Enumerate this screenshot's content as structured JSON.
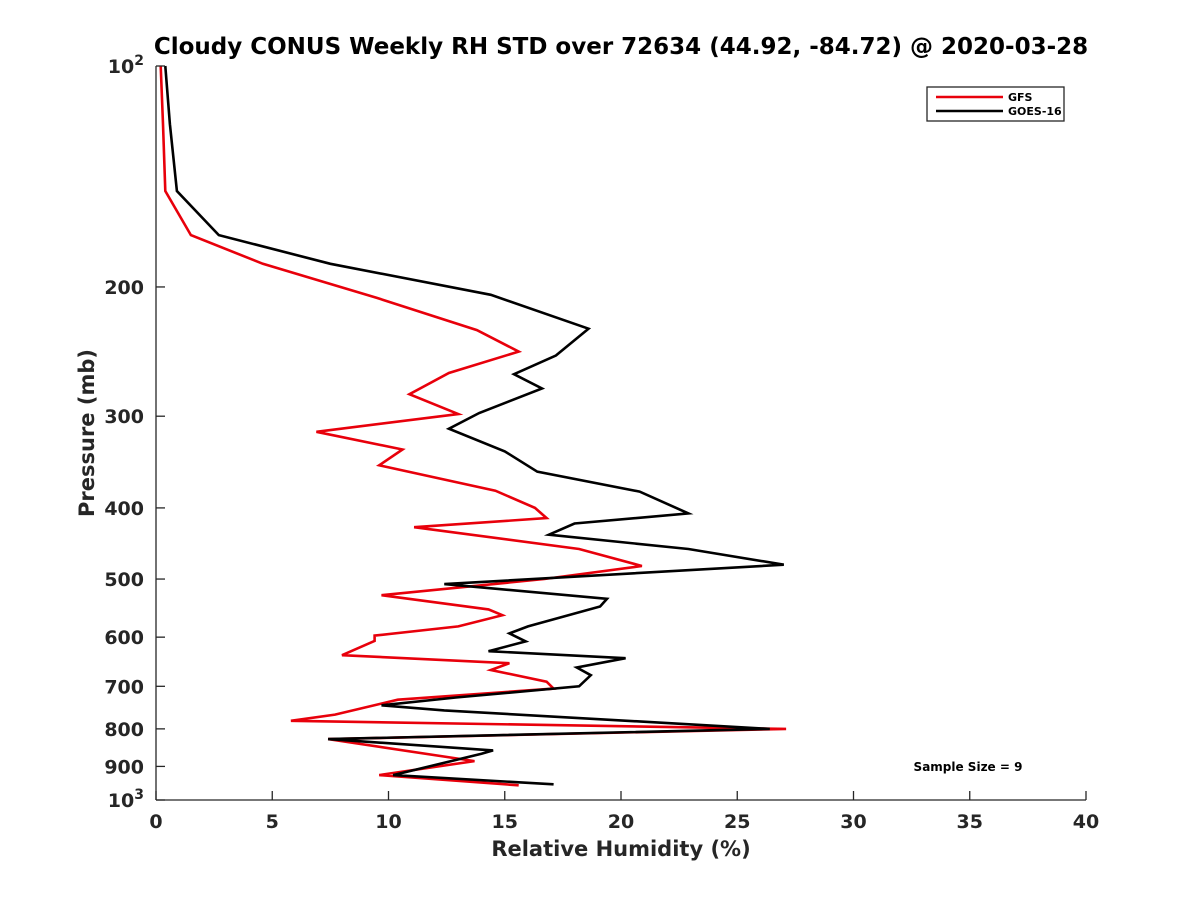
{
  "chart_data": {
    "type": "line",
    "title": "Cloudy CONUS Weekly RH STD over 72634 (44.92, -84.72) @ 2020-03-28",
    "xlabel": "Relative Humidity (%)",
    "ylabel": "Pressure (mb)",
    "xlim": [
      0,
      40
    ],
    "ylim": [
      100,
      1000
    ],
    "y_scale": "log",
    "y_reversed": true,
    "x_ticks": [
      "0",
      "5",
      "10",
      "15",
      "20",
      "25",
      "30",
      "35",
      "40"
    ],
    "y_ticks": [
      {
        "value": 100,
        "base": "10",
        "exp": "2"
      },
      {
        "value": 200,
        "label": "200"
      },
      {
        "value": 300,
        "label": "300"
      },
      {
        "value": 400,
        "label": "400"
      },
      {
        "value": 500,
        "label": "500"
      },
      {
        "value": 600,
        "label": "600"
      },
      {
        "value": 700,
        "label": "700"
      },
      {
        "value": 800,
        "label": "800"
      },
      {
        "value": 900,
        "label": "900"
      },
      {
        "value": 1000,
        "base": "10",
        "exp": "3"
      }
    ],
    "legend_position": "top-right",
    "annotation": "Sample Size = 9",
    "series": [
      {
        "name": "GFS",
        "color": "#e8000b",
        "x": [
          0.2,
          0.3,
          0.4,
          1.5,
          4.6,
          9.5,
          13.8,
          15.6,
          12.6,
          10.9,
          13.0,
          6.9,
          10.6,
          9.6,
          14.6,
          16.3,
          16.8,
          11.1,
          18.2,
          20.9,
          16.7,
          9.7,
          14.3,
          14.9,
          13.0,
          9.4,
          9.4,
          8.0,
          15.2,
          14.4,
          16.8,
          17.1,
          10.4,
          7.7,
          5.8,
          27.1,
          7.4,
          13.7,
          13.7,
          9.6,
          15.6
        ],
        "y": [
          100,
          120,
          148,
          170,
          186,
          207,
          229,
          245,
          262,
          280,
          298,
          315,
          333,
          350,
          379,
          400,
          413,
          425,
          455,
          480,
          500,
          526,
          550,
          560,
          580,
          597,
          607,
          635,
          651,
          665,
          690,
          705,
          730,
          765,
          780,
          800,
          826,
          885,
          885,
          925,
          955
        ]
      },
      {
        "name": "GOES-16",
        "color": "#000000",
        "x": [
          0.4,
          0.6,
          0.9,
          2.7,
          7.5,
          14.4,
          18.6,
          17.2,
          15.4,
          16.6,
          13.9,
          12.6,
          15.0,
          16.4,
          20.8,
          22.9,
          18.0,
          16.9,
          22.9,
          27.0,
          12.4,
          19.4,
          19.1,
          16.0,
          15.2,
          15.9,
          14.3,
          20.2,
          18.1,
          18.7,
          18.2,
          12.9,
          9.7,
          12.4,
          26.4,
          7.4,
          14.5,
          14.0,
          10.2,
          17.1
        ],
        "y": [
          100,
          120,
          148,
          170,
          186,
          205,
          228,
          248,
          263,
          275,
          297,
          312,
          335,
          357,
          380,
          407,
          420,
          435,
          455,
          478,
          508,
          532,
          545,
          580,
          593,
          608,
          627,
          641,
          660,
          676,
          700,
          725,
          743,
          755,
          800,
          826,
          856,
          865,
          925,
          952
        ]
      }
    ]
  }
}
